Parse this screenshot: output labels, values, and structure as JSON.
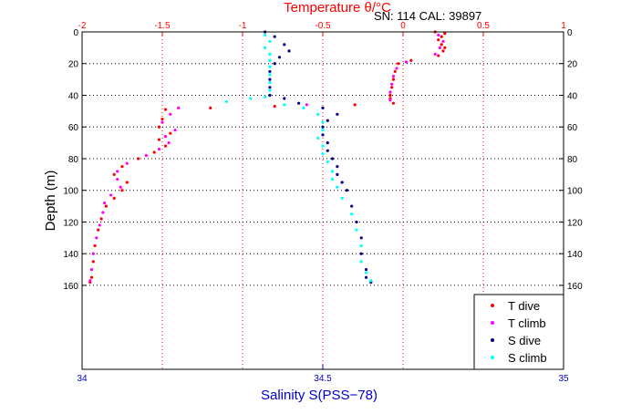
{
  "chart_data": {
    "type": "scatter",
    "title": "Temperature θ/°C",
    "annotation": "SN: 114  CAL: 39897",
    "ylabel": "Depth (m)",
    "xlabel_bottom": "Salinity S(PSS−78)",
    "xlabel_top": "Temperature θ/°C",
    "ylim": [
      0,
      213
    ],
    "y_reversed": true,
    "y_ticks": [
      "0",
      "20",
      "40",
      "60",
      "80",
      "100",
      "120",
      "140",
      "160"
    ],
    "x_top": {
      "lim": [
        -2,
        1
      ],
      "ticks": [
        "-2",
        "-1.5",
        "-1",
        "-0.5",
        "0",
        "0.5",
        "1"
      ],
      "color": "#ff0000"
    },
    "x_bottom": {
      "lim": [
        34,
        35
      ],
      "ticks": [
        "34",
        "34.5",
        "35"
      ],
      "color": "#0000cc"
    },
    "grid": true,
    "legend_position": "bottom-right",
    "series": [
      {
        "name": "T dive",
        "axis": "top",
        "color": "#ff0000",
        "marker": "dot",
        "points": [
          [
            0.2,
            0
          ],
          [
            0.26,
            1
          ],
          [
            0.24,
            3
          ],
          [
            0.22,
            5
          ],
          [
            0.24,
            8
          ],
          [
            0.26,
            10
          ],
          [
            0.25,
            12
          ],
          [
            0.22,
            15
          ],
          [
            0.05,
            18
          ],
          [
            -0.03,
            20
          ],
          [
            -0.05,
            25
          ],
          [
            -0.06,
            30
          ],
          [
            -0.07,
            35
          ],
          [
            -0.08,
            40
          ],
          [
            -0.08,
            42
          ],
          [
            -0.06,
            45
          ],
          [
            -0.3,
            46
          ],
          [
            -0.8,
            47
          ],
          [
            -1.2,
            48
          ],
          [
            -1.48,
            49
          ],
          [
            -1.5,
            55
          ],
          [
            -1.52,
            60
          ],
          [
            -1.45,
            64
          ],
          [
            -1.52,
            68
          ],
          [
            -1.48,
            72
          ],
          [
            -1.55,
            76
          ],
          [
            -1.65,
            80
          ],
          [
            -1.75,
            85
          ],
          [
            -1.8,
            90
          ],
          [
            -1.72,
            95
          ],
          [
            -1.75,
            100
          ],
          [
            -1.8,
            105
          ],
          [
            -1.85,
            110
          ],
          [
            -1.88,
            118
          ],
          [
            -1.9,
            125
          ],
          [
            -1.92,
            135
          ],
          [
            -1.93,
            145
          ],
          [
            -1.94,
            155
          ],
          [
            -1.95,
            158
          ]
        ]
      },
      {
        "name": "T climb",
        "axis": "top",
        "color": "#ff00ff",
        "marker": "dot",
        "points": [
          [
            0.22,
            2
          ],
          [
            0.25,
            6
          ],
          [
            0.23,
            10
          ],
          [
            0.2,
            14
          ],
          [
            0.02,
            19
          ],
          [
            -0.04,
            23
          ],
          [
            -0.06,
            28
          ],
          [
            -0.07,
            33
          ],
          [
            -0.08,
            38
          ],
          [
            -0.08,
            43
          ],
          [
            -0.6,
            46
          ],
          [
            -1.4,
            48
          ],
          [
            -1.45,
            52
          ],
          [
            -1.5,
            57
          ],
          [
            -1.42,
            62
          ],
          [
            -1.48,
            66
          ],
          [
            -1.46,
            70
          ],
          [
            -1.52,
            74
          ],
          [
            -1.6,
            78
          ],
          [
            -1.72,
            83
          ],
          [
            -1.78,
            88
          ],
          [
            -1.78,
            93
          ],
          [
            -1.76,
            98
          ],
          [
            -1.82,
            103
          ],
          [
            -1.86,
            108
          ],
          [
            -1.87,
            114
          ],
          [
            -1.89,
            122
          ],
          [
            -1.91,
            130
          ],
          [
            -1.93,
            140
          ],
          [
            -1.94,
            150
          ],
          [
            -1.95,
            157
          ]
        ]
      },
      {
        "name": "S dive",
        "axis": "bottom",
        "color": "#00008b",
        "marker": "dot",
        "points": [
          [
            34.38,
            0
          ],
          [
            34.4,
            3
          ],
          [
            34.42,
            8
          ],
          [
            34.43,
            12
          ],
          [
            34.41,
            16
          ],
          [
            34.4,
            20
          ],
          [
            34.39,
            25
          ],
          [
            34.39,
            30
          ],
          [
            34.39,
            35
          ],
          [
            34.39,
            40
          ],
          [
            34.42,
            42
          ],
          [
            34.45,
            45
          ],
          [
            34.5,
            48
          ],
          [
            34.53,
            52
          ],
          [
            34.51,
            56
          ],
          [
            34.5,
            60
          ],
          [
            34.5,
            65
          ],
          [
            34.51,
            70
          ],
          [
            34.51,
            75
          ],
          [
            34.52,
            80
          ],
          [
            34.53,
            85
          ],
          [
            34.53,
            90
          ],
          [
            34.54,
            95
          ],
          [
            34.55,
            100
          ],
          [
            34.56,
            110
          ],
          [
            34.57,
            120
          ],
          [
            34.58,
            130
          ],
          [
            34.58,
            140
          ],
          [
            34.59,
            150
          ],
          [
            34.59,
            155
          ],
          [
            34.6,
            158
          ]
        ]
      },
      {
        "name": "S climb",
        "axis": "bottom",
        "color": "#00ffff",
        "marker": "dot",
        "points": [
          [
            34.38,
            2
          ],
          [
            34.39,
            6
          ],
          [
            34.38,
            10
          ],
          [
            34.39,
            14
          ],
          [
            34.39,
            18
          ],
          [
            34.39,
            22
          ],
          [
            34.39,
            27
          ],
          [
            34.39,
            32
          ],
          [
            34.39,
            37
          ],
          [
            34.38,
            41
          ],
          [
            34.35,
            42
          ],
          [
            34.3,
            44
          ],
          [
            34.42,
            46
          ],
          [
            34.46,
            48
          ],
          [
            34.49,
            52
          ],
          [
            34.5,
            57
          ],
          [
            34.5,
            62
          ],
          [
            34.49,
            67
          ],
          [
            34.5,
            72
          ],
          [
            34.5,
            77
          ],
          [
            34.51,
            82
          ],
          [
            34.52,
            88
          ],
          [
            34.52,
            93
          ],
          [
            34.53,
            98
          ],
          [
            34.54,
            105
          ],
          [
            34.56,
            115
          ],
          [
            34.57,
            125
          ],
          [
            34.58,
            135
          ],
          [
            34.58,
            145
          ],
          [
            34.59,
            152
          ],
          [
            34.6,
            157
          ]
        ]
      }
    ]
  }
}
